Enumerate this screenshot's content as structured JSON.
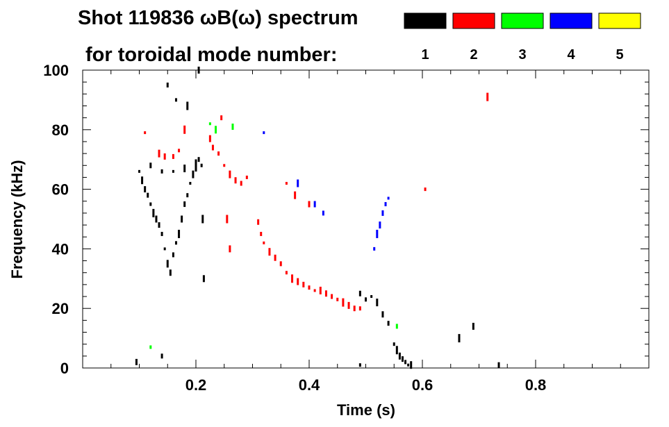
{
  "chart_data": {
    "type": "scatter",
    "title_line1": "Shot 119836 ωB(ω) spectrum",
    "title_line2": "for toroidal mode number:",
    "xlabel": "Time (s)",
    "ylabel": "Frequency (kHz)",
    "xlim": [
      0.0,
      1.0
    ],
    "ylim": [
      0,
      100
    ],
    "x_ticks": [
      0.2,
      0.4,
      0.6,
      0.8
    ],
    "x_tick_labels": [
      "0.2",
      "0.4",
      "0.6",
      "0.8"
    ],
    "y_ticks": [
      0,
      20,
      40,
      60,
      80,
      100
    ],
    "y_tick_labels": [
      "0",
      "20",
      "40",
      "60",
      "80",
      "100"
    ],
    "legend": [
      {
        "label": "1",
        "color": "#000000"
      },
      {
        "label": "2",
        "color": "#ff0000"
      },
      {
        "label": "3",
        "color": "#00ff00"
      },
      {
        "label": "4",
        "color": "#0000ff"
      },
      {
        "label": "5",
        "color": "#ffff00"
      }
    ],
    "series": [
      {
        "name": "n=1",
        "color": "#000000",
        "points": [
          [
            0.1,
            66
          ],
          [
            0.105,
            63
          ],
          [
            0.11,
            60
          ],
          [
            0.115,
            58
          ],
          [
            0.12,
            55
          ],
          [
            0.125,
            52
          ],
          [
            0.13,
            50
          ],
          [
            0.135,
            48
          ],
          [
            0.14,
            45
          ],
          [
            0.145,
            40
          ],
          [
            0.15,
            35
          ],
          [
            0.155,
            32
          ],
          [
            0.16,
            38
          ],
          [
            0.165,
            42
          ],
          [
            0.17,
            45
          ],
          [
            0.175,
            50
          ],
          [
            0.18,
            55
          ],
          [
            0.185,
            58
          ],
          [
            0.19,
            62
          ],
          [
            0.195,
            65
          ],
          [
            0.2,
            67
          ],
          [
            0.205,
            70
          ],
          [
            0.21,
            68
          ],
          [
            0.212,
            50
          ],
          [
            0.214,
            30
          ],
          [
            0.12,
            68
          ],
          [
            0.14,
            66
          ],
          [
            0.16,
            66
          ],
          [
            0.18,
            67
          ],
          [
            0.2,
            69
          ],
          [
            0.15,
            95
          ],
          [
            0.165,
            90
          ],
          [
            0.185,
            88
          ],
          [
            0.205,
            100
          ],
          [
            0.49,
            25
          ],
          [
            0.5,
            23
          ],
          [
            0.51,
            24
          ],
          [
            0.52,
            22
          ],
          [
            0.53,
            18
          ],
          [
            0.54,
            15
          ],
          [
            0.55,
            8
          ],
          [
            0.555,
            6
          ],
          [
            0.56,
            4
          ],
          [
            0.565,
            3
          ],
          [
            0.57,
            2
          ],
          [
            0.575,
            1
          ],
          [
            0.58,
            1
          ],
          [
            0.095,
            2
          ],
          [
            0.14,
            4
          ],
          [
            0.49,
            1
          ],
          [
            0.665,
            10
          ],
          [
            0.69,
            14
          ],
          [
            0.735,
            1
          ]
        ]
      },
      {
        "name": "n=2",
        "color": "#ff0000",
        "points": [
          [
            0.11,
            79
          ],
          [
            0.135,
            72
          ],
          [
            0.145,
            71
          ],
          [
            0.16,
            71
          ],
          [
            0.17,
            73
          ],
          [
            0.18,
            80
          ],
          [
            0.225,
            77
          ],
          [
            0.23,
            74
          ],
          [
            0.24,
            72
          ],
          [
            0.25,
            68
          ],
          [
            0.26,
            65
          ],
          [
            0.27,
            63
          ],
          [
            0.28,
            62
          ],
          [
            0.29,
            64
          ],
          [
            0.255,
            50
          ],
          [
            0.26,
            40
          ],
          [
            0.31,
            49
          ],
          [
            0.315,
            45
          ],
          [
            0.32,
            42
          ],
          [
            0.33,
            39
          ],
          [
            0.34,
            37
          ],
          [
            0.35,
            35
          ],
          [
            0.36,
            32
          ],
          [
            0.37,
            30
          ],
          [
            0.38,
            29
          ],
          [
            0.39,
            28
          ],
          [
            0.4,
            27
          ],
          [
            0.41,
            26
          ],
          [
            0.42,
            26
          ],
          [
            0.43,
            25
          ],
          [
            0.44,
            24
          ],
          [
            0.45,
            23
          ],
          [
            0.46,
            22
          ],
          [
            0.47,
            21
          ],
          [
            0.48,
            20
          ],
          [
            0.49,
            20
          ],
          [
            0.36,
            62
          ],
          [
            0.375,
            58
          ],
          [
            0.4,
            55
          ],
          [
            0.245,
            84
          ],
          [
            0.605,
            60
          ],
          [
            0.715,
            91
          ]
        ]
      },
      {
        "name": "n=3",
        "color": "#00ff00",
        "points": [
          [
            0.225,
            82
          ],
          [
            0.235,
            80
          ],
          [
            0.265,
            81
          ],
          [
            0.555,
            14
          ],
          [
            0.12,
            7
          ]
        ]
      },
      {
        "name": "n=4",
        "color": "#0000ff",
        "points": [
          [
            0.32,
            79
          ],
          [
            0.38,
            62
          ],
          [
            0.41,
            55
          ],
          [
            0.425,
            52
          ],
          [
            0.515,
            40
          ],
          [
            0.52,
            45
          ],
          [
            0.525,
            48
          ],
          [
            0.53,
            52
          ],
          [
            0.535,
            55
          ],
          [
            0.54,
            57
          ]
        ]
      },
      {
        "name": "n=5",
        "color": "#ffff00",
        "points": []
      }
    ]
  }
}
